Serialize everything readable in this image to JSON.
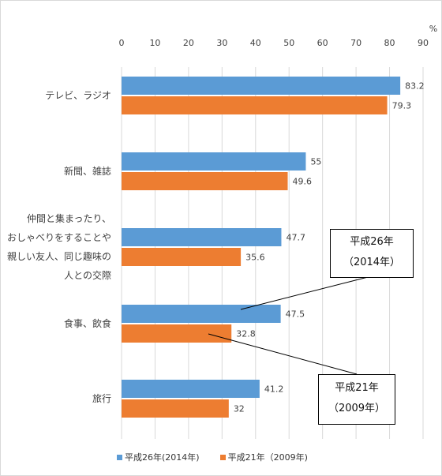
{
  "chart_data": {
    "type": "bar",
    "orientation": "horizontal",
    "unit": "%",
    "xlim": [
      0,
      90
    ],
    "ticks": [
      0,
      10,
      20,
      30,
      40,
      50,
      60,
      70,
      80,
      90
    ],
    "categories": [
      [
        "テレビ、ラジオ"
      ],
      [
        "新聞、雑誌"
      ],
      [
        "仲間と集まったり、",
        "おしゃべりをすることや",
        "親しい友人、同じ趣味の",
        "人との交際"
      ],
      [
        "食事、飲食"
      ],
      [
        "旅行"
      ]
    ],
    "series": [
      {
        "name": "平成26年(2014年)",
        "values": [
          83.2,
          55,
          47.7,
          47.5,
          41.2
        ],
        "labels": [
          "83.2",
          "55",
          "47.7",
          "47.5",
          "41.2"
        ],
        "color": "#5b9bd5"
      },
      {
        "name": "平成21年（2009年)",
        "values": [
          79.3,
          49.6,
          35.6,
          32.8,
          32
        ],
        "labels": [
          "79.3",
          "49.6",
          "35.6",
          "32.8",
          "32"
        ],
        "color": "#ed7d31"
      }
    ],
    "grid": true,
    "legend": "bottom"
  },
  "callouts": [
    {
      "line1": "平成26年",
      "line2": "（2014年）"
    },
    {
      "line1": "平成21年",
      "line2": "（2009年）"
    }
  ]
}
